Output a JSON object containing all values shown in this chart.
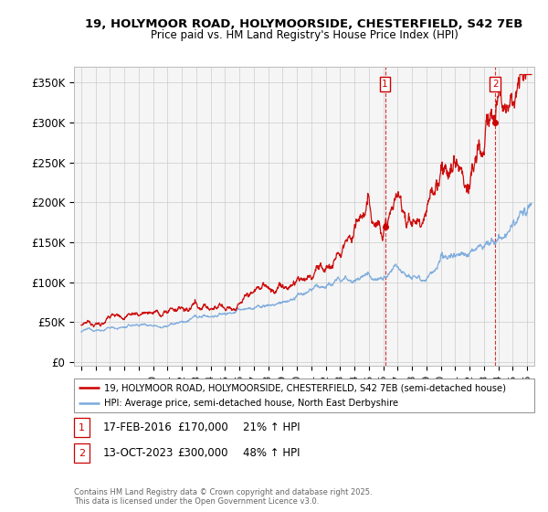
{
  "title_line1": "19, HOLYMOOR ROAD, HOLYMOORSIDE, CHESTERFIELD, S42 7EB",
  "title_line2": "Price paid vs. HM Land Registry's House Price Index (HPI)",
  "ylabel_ticks": [
    "£0",
    "£50K",
    "£100K",
    "£150K",
    "£200K",
    "£250K",
    "£300K",
    "£350K"
  ],
  "ytick_vals": [
    0,
    50000,
    100000,
    150000,
    200000,
    250000,
    300000,
    350000
  ],
  "ylim": [
    -5000,
    370000
  ],
  "xlim_start": 1994.5,
  "xlim_end": 2026.5,
  "red_color": "#cc0000",
  "blue_color": "#7aaadd",
  "sale1_x": 2016.12,
  "sale1_y": 170000,
  "sale2_x": 2023.79,
  "sale2_y": 300000,
  "legend_label_red": "19, HOLYMOOR ROAD, HOLYMOORSIDE, CHESTERFIELD, S42 7EB (semi-detached house)",
  "legend_label_blue": "HPI: Average price, semi-detached house, North East Derbyshire",
  "sale1_date": "17-FEB-2016",
  "sale1_price": "£170,000",
  "sale1_pct": "21% ↑ HPI",
  "sale2_date": "13-OCT-2023",
  "sale2_price": "£300,000",
  "sale2_pct": "48% ↑ HPI",
  "footnote": "Contains HM Land Registry data © Crown copyright and database right 2025.\nThis data is licensed under the Open Government Licence v3.0.",
  "background_color": "#f5f5f5",
  "grid_color": "#cccccc"
}
